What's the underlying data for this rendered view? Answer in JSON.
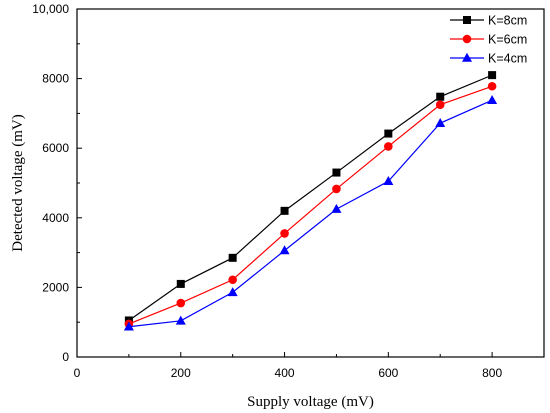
{
  "chart_data": {
    "type": "line",
    "xlabel": "Supply voltage (mV)",
    "ylabel": "Detected voltage (mV)",
    "xlim": [
      0,
      900
    ],
    "ylim": [
      0,
      10000
    ],
    "x_ticks": [
      "0",
      "200",
      "400",
      "600",
      "800"
    ],
    "y_ticks": [
      "0",
      "2000",
      "4000",
      "6000",
      "8000",
      "10,000"
    ],
    "grid": false,
    "legend_position": "top-right",
    "x": [
      100,
      200,
      300,
      400,
      500,
      600,
      700,
      800
    ],
    "series": [
      {
        "name": "K=8cm",
        "color": "#000000",
        "marker": "square",
        "values": [
          1050,
          2100,
          2850,
          4200,
          5300,
          6420,
          7480,
          8100
        ]
      },
      {
        "name": "K=6cm",
        "color": "#ff0000",
        "marker": "circle",
        "values": [
          950,
          1550,
          2220,
          3550,
          4830,
          6050,
          7250,
          7780
        ]
      },
      {
        "name": "K=4cm",
        "color": "#0000ff",
        "marker": "triangle",
        "values": [
          870,
          1040,
          1860,
          3060,
          4250,
          5050,
          6720,
          7380
        ]
      }
    ]
  }
}
